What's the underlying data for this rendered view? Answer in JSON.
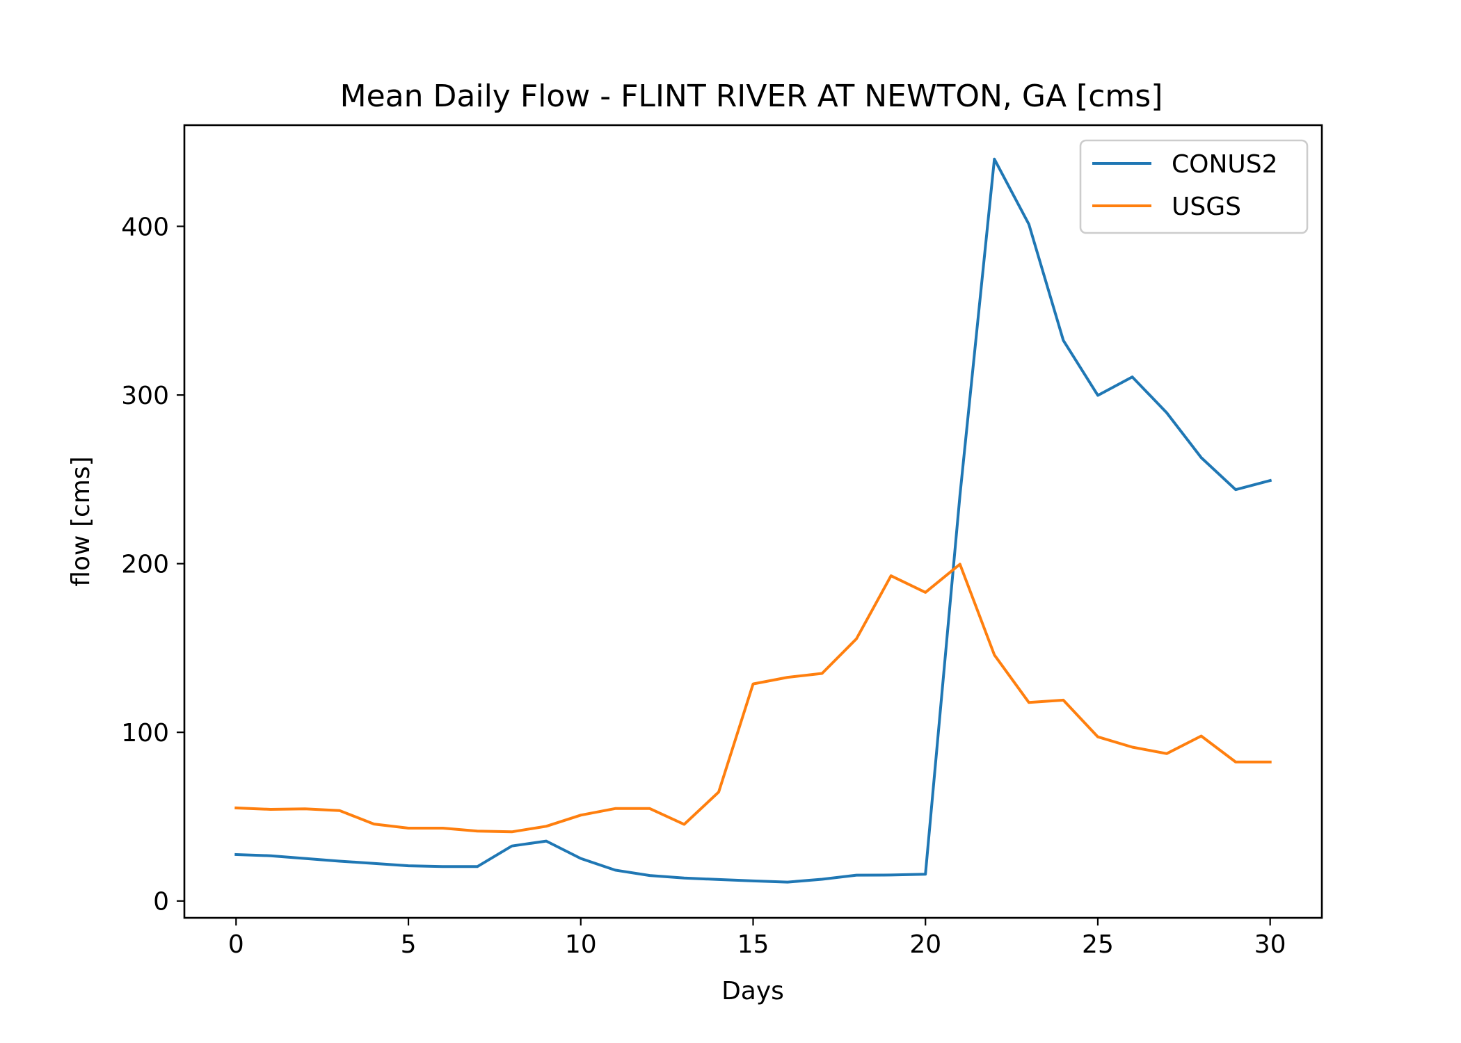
{
  "chart_data": {
    "type": "line",
    "title": "Mean Daily Flow - FLINT RIVER AT NEWTON, GA [cms]",
    "xlabel": "Days",
    "ylabel": "flow [cms]",
    "xlim": [
      -1.5,
      31.5
    ],
    "ylim": [
      -10,
      460
    ],
    "x_ticks": [
      0,
      5,
      10,
      15,
      20,
      25,
      30
    ],
    "y_ticks": [
      0,
      100,
      200,
      300,
      400
    ],
    "grid": false,
    "legend": "top-right",
    "x": [
      0,
      1,
      2,
      3,
      4,
      5,
      6,
      7,
      8,
      9,
      10,
      11,
      12,
      13,
      14,
      15,
      16,
      17,
      18,
      19,
      20,
      21,
      22,
      23,
      24,
      25,
      26,
      27,
      28,
      29,
      30
    ],
    "series": [
      {
        "name": "CONUS2",
        "color": "#1f77b4",
        "values": [
          27.5,
          26.8,
          25.2,
          23.6,
          22.3,
          20.9,
          20.4,
          20.4,
          32.6,
          35.5,
          25.2,
          18.3,
          15.1,
          13.6,
          12.7,
          11.9,
          11.2,
          12.9,
          15.3,
          15.4,
          15.9,
          240.5,
          439.9,
          401.2,
          332.4,
          299.8,
          310.7,
          289.5,
          262.9,
          243.9,
          249.3
        ]
      },
      {
        "name": "USGS",
        "color": "#ff7f0e",
        "values": [
          55.2,
          54.3,
          54.6,
          53.6,
          45.6,
          43.2,
          43.2,
          41.4,
          41.0,
          44.3,
          50.9,
          54.8,
          54.8,
          45.4,
          64.6,
          128.7,
          132.6,
          134.9,
          155.5,
          192.8,
          183.0,
          199.7,
          145.9,
          117.7,
          119.1,
          97.3,
          91.2,
          87.4,
          97.8,
          82.4,
          82.4
        ]
      }
    ]
  }
}
